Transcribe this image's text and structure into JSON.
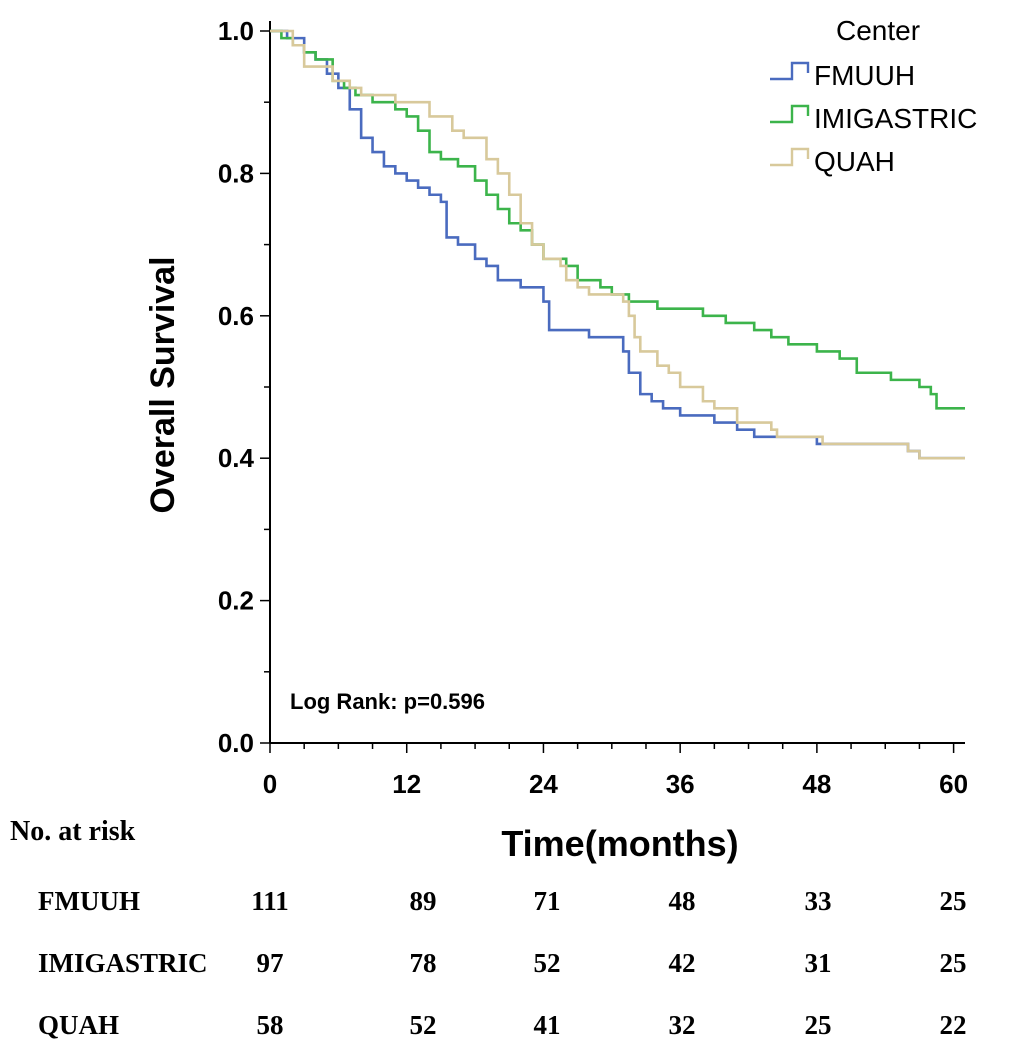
{
  "chart_data": {
    "type": "line",
    "step": true,
    "ylabel": "Overall Survival",
    "xlabel": "Time(months)",
    "xlim": [
      0,
      61
    ],
    "ylim": [
      0,
      1.0
    ],
    "x_ticks": [
      0,
      12,
      24,
      36,
      48,
      60
    ],
    "y_ticks": [
      0.0,
      0.2,
      0.4,
      0.6,
      0.8,
      1.0
    ],
    "y_tick_labels": [
      "0.0",
      "0.2",
      "0.4",
      "0.6",
      "0.8",
      "1.0"
    ],
    "legend_title": "Center",
    "legend_position": "top-right",
    "annotation": "Log Rank: p=0.596",
    "grid": false,
    "series": [
      {
        "name": "FMUUH",
        "color": "#4a6bbf",
        "points": [
          [
            0,
            1.0
          ],
          [
            1.5,
            0.99
          ],
          [
            3,
            0.97
          ],
          [
            4,
            0.96
          ],
          [
            5,
            0.94
          ],
          [
            6,
            0.92
          ],
          [
            7,
            0.89
          ],
          [
            8,
            0.85
          ],
          [
            9,
            0.83
          ],
          [
            10,
            0.81
          ],
          [
            11,
            0.8
          ],
          [
            12,
            0.79
          ],
          [
            13,
            0.78
          ],
          [
            14,
            0.77
          ],
          [
            15,
            0.76
          ],
          [
            15.5,
            0.71
          ],
          [
            16.5,
            0.7
          ],
          [
            18,
            0.68
          ],
          [
            19,
            0.67
          ],
          [
            20,
            0.65
          ],
          [
            22,
            0.64
          ],
          [
            24,
            0.62
          ],
          [
            24.5,
            0.58
          ],
          [
            27,
            0.58
          ],
          [
            28,
            0.57
          ],
          [
            31,
            0.55
          ],
          [
            31.5,
            0.52
          ],
          [
            32.5,
            0.49
          ],
          [
            33.5,
            0.48
          ],
          [
            34.5,
            0.47
          ],
          [
            36,
            0.46
          ],
          [
            39,
            0.45
          ],
          [
            41,
            0.44
          ],
          [
            42.5,
            0.43
          ],
          [
            46,
            0.43
          ],
          [
            48,
            0.42
          ],
          [
            50,
            0.42
          ],
          [
            56,
            0.41
          ],
          [
            57,
            0.4
          ],
          [
            61,
            0.4
          ]
        ]
      },
      {
        "name": "IMIGASTRIC",
        "color": "#3cb44b",
        "points": [
          [
            0,
            1.0
          ],
          [
            1,
            0.99
          ],
          [
            2,
            0.98
          ],
          [
            3,
            0.97
          ],
          [
            4,
            0.96
          ],
          [
            5.5,
            0.93
          ],
          [
            6.5,
            0.92
          ],
          [
            7.5,
            0.91
          ],
          [
            9,
            0.9
          ],
          [
            11,
            0.89
          ],
          [
            12,
            0.88
          ],
          [
            13,
            0.86
          ],
          [
            14,
            0.83
          ],
          [
            15,
            0.82
          ],
          [
            16.5,
            0.81
          ],
          [
            18,
            0.79
          ],
          [
            19,
            0.77
          ],
          [
            20,
            0.75
          ],
          [
            21,
            0.73
          ],
          [
            22,
            0.72
          ],
          [
            23,
            0.7
          ],
          [
            24,
            0.68
          ],
          [
            26,
            0.67
          ],
          [
            27,
            0.65
          ],
          [
            29,
            0.64
          ],
          [
            30,
            0.63
          ],
          [
            31.5,
            0.62
          ],
          [
            34,
            0.61
          ],
          [
            38,
            0.6
          ],
          [
            40,
            0.59
          ],
          [
            41,
            0.59
          ],
          [
            42.5,
            0.58
          ],
          [
            44,
            0.57
          ],
          [
            45.5,
            0.56
          ],
          [
            48,
            0.55
          ],
          [
            50,
            0.54
          ],
          [
            51.5,
            0.52
          ],
          [
            52.5,
            0.52
          ],
          [
            54.5,
            0.51
          ],
          [
            57,
            0.5
          ],
          [
            58,
            0.49
          ],
          [
            58.5,
            0.47
          ],
          [
            61,
            0.47
          ]
        ]
      },
      {
        "name": "QUAH",
        "color": "#d8c99b",
        "points": [
          [
            0,
            1.0
          ],
          [
            2,
            0.98
          ],
          [
            3,
            0.95
          ],
          [
            4.5,
            0.95
          ],
          [
            5.5,
            0.93
          ],
          [
            7,
            0.92
          ],
          [
            8,
            0.91
          ],
          [
            9.5,
            0.91
          ],
          [
            11,
            0.9
          ],
          [
            13,
            0.9
          ],
          [
            14,
            0.88
          ],
          [
            16,
            0.86
          ],
          [
            17,
            0.85
          ],
          [
            18.5,
            0.85
          ],
          [
            19,
            0.82
          ],
          [
            20,
            0.8
          ],
          [
            21,
            0.77
          ],
          [
            22,
            0.73
          ],
          [
            23,
            0.7
          ],
          [
            24,
            0.68
          ],
          [
            25.5,
            0.67
          ],
          [
            26,
            0.65
          ],
          [
            27,
            0.64
          ],
          [
            28,
            0.63
          ],
          [
            31,
            0.62
          ],
          [
            31.5,
            0.6
          ],
          [
            32,
            0.57
          ],
          [
            32.5,
            0.55
          ],
          [
            33.5,
            0.55
          ],
          [
            34,
            0.53
          ],
          [
            35,
            0.52
          ],
          [
            36,
            0.5
          ],
          [
            38,
            0.48
          ],
          [
            39,
            0.47
          ],
          [
            41,
            0.45
          ],
          [
            44,
            0.44
          ],
          [
            44.5,
            0.43
          ],
          [
            48,
            0.43
          ],
          [
            48.5,
            0.42
          ],
          [
            49,
            0.42
          ],
          [
            56,
            0.41
          ],
          [
            57,
            0.4
          ],
          [
            61,
            0.4
          ]
        ]
      }
    ]
  },
  "risk_table": {
    "title": "No. at risk",
    "rows": [
      {
        "label": "FMUUH",
        "values": [
          "111",
          "89",
          "71",
          "48",
          "33",
          "25"
        ]
      },
      {
        "label": "IMIGASTRIC",
        "values": [
          "97",
          "78",
          "52",
          "42",
          "31",
          "25"
        ]
      },
      {
        "label": "QUAH",
        "values": [
          "58",
          "52",
          "41",
          "32",
          "25",
          "22"
        ]
      }
    ]
  }
}
